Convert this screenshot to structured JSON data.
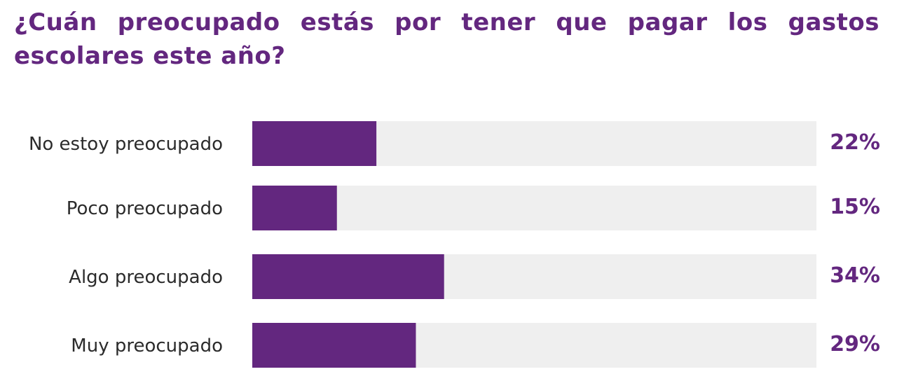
{
  "chart_data": {
    "type": "bar",
    "orientation": "horizontal",
    "title": "¿Cuán preocupado estás por tener que pagar los gastos escolares este año?",
    "categories": [
      "No estoy preocupado",
      "Poco preocupado",
      "Algo preocupado",
      "Muy preocupado"
    ],
    "values": [
      22,
      15,
      34,
      29
    ],
    "value_labels": [
      "22%",
      "15%",
      "34%",
      "29%"
    ],
    "xlim": [
      0,
      100
    ],
    "grid": false,
    "legend": "none",
    "colors": {
      "bar": "#63277f",
      "track": "#efefef",
      "title": "#63277f",
      "value_text": "#63277f"
    }
  }
}
